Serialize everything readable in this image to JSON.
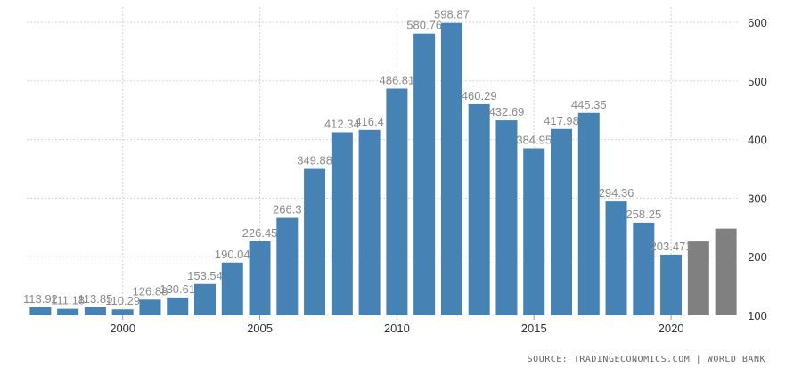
{
  "chart_data": {
    "type": "bar",
    "categories": [
      "1997",
      "1998",
      "1999",
      "2000",
      "2001",
      "2002",
      "2003",
      "2004",
      "2005",
      "2006",
      "2007",
      "2008",
      "2009",
      "2010",
      "2011",
      "2012",
      "2013",
      "2014",
      "2015",
      "2016",
      "2017",
      "2018",
      "2019",
      "2020",
      "2021",
      "2022"
    ],
    "values": [
      113.92,
      111.18,
      113.85,
      110.29,
      126.88,
      130.61,
      153.54,
      190.04,
      226.45,
      266.3,
      349.88,
      412.34,
      416.4,
      486.81,
      580.76,
      598.87,
      460.29,
      432.69,
      384.95,
      417.98,
      445.35,
      294.36,
      258.25,
      203.471,
      226,
      248
    ],
    "value_labels": [
      "113.92",
      "111.18",
      "113.85",
      "110.29",
      "126.88",
      "130.61",
      "153.54",
      "190.04",
      "226.45",
      "266.3",
      "349.88",
      "412.34",
      "416.4",
      "486.81",
      "580.76",
      "598.87",
      "460.29",
      "432.69",
      "384.95",
      "417.98",
      "445.35",
      "294.36",
      "258.25",
      "203.471",
      "",
      ""
    ],
    "forecast_from_index": 24,
    "colors": {
      "actual": "#4682b4",
      "forecast": "#808080",
      "grid": "#d4d4d4",
      "label": "#8a8a8a",
      "axis_text": "#333333"
    },
    "x_ticks": [
      {
        "label": "2000",
        "category": "2000"
      },
      {
        "label": "2005",
        "category": "2005"
      },
      {
        "label": "2010",
        "category": "2010"
      },
      {
        "label": "2015",
        "category": "2015"
      },
      {
        "label": "2020",
        "category": "2020"
      }
    ],
    "y_ticks": [
      100,
      200,
      300,
      400,
      500,
      600
    ],
    "ylim": [
      100,
      620
    ],
    "y_axis_side": "right",
    "grid": true,
    "title": "",
    "xlabel": "",
    "ylabel": ""
  },
  "source_text": "SOURCE: TRADINGECONOMICS.COM | WORLD BANK"
}
